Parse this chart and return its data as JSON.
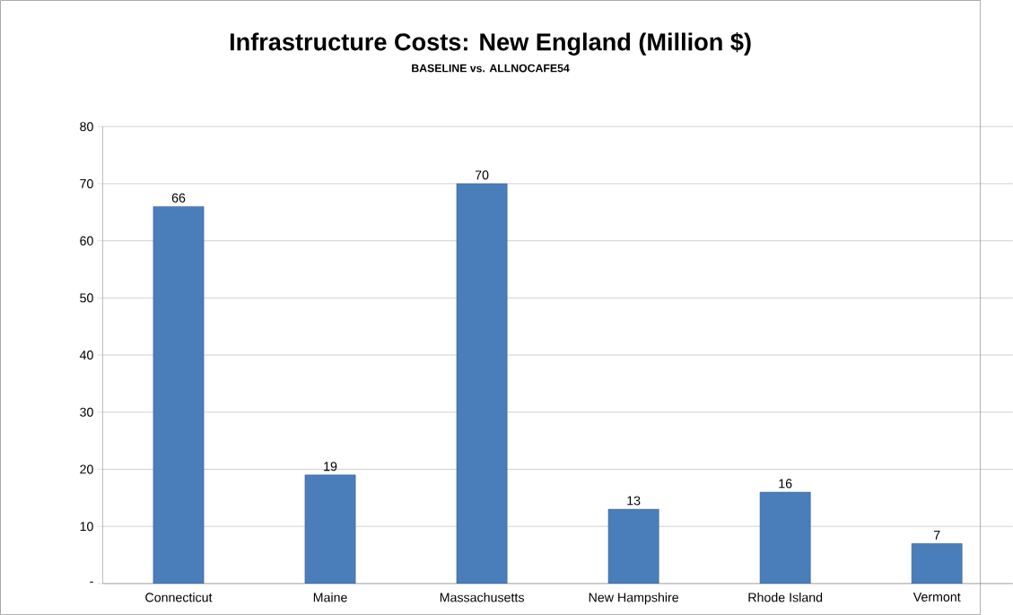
{
  "chart_data": {
    "type": "bar",
    "title": "Infrastructure Costs:  New England    (Million $)",
    "subtitle": "BASELINE vs. ALLNOCAFE54",
    "categories": [
      "Connecticut",
      "Maine",
      "Massachusetts",
      "New Hampshire",
      "Rhode Island",
      "Vermont"
    ],
    "values": [
      66,
      19,
      70,
      13,
      16,
      7
    ],
    "color": "#4a7ebb",
    "data_labels": true,
    "ylim": [
      0,
      80
    ],
    "yticks": [
      {
        "value": 0,
        "label": "-"
      },
      10,
      20,
      30,
      40,
      50,
      60,
      70,
      80
    ],
    "grid": "y"
  }
}
